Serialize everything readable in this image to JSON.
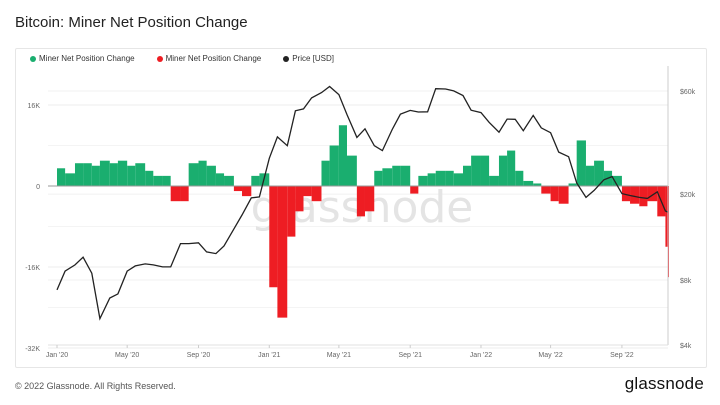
{
  "title": "Bitcoin: Miner Net Position Change",
  "footer": "© 2022 Glassnode. All Rights Reserved.",
  "logo": "glassnode",
  "watermark": "glassnode",
  "chart_data": {
    "type": "bar+line",
    "title": "Bitcoin: Miner Net Position Change",
    "legend": [
      {
        "name": "Miner Net Position Change",
        "color": "#1aae6f"
      },
      {
        "name": "Miner Net Position Change",
        "color": "#ee1d23"
      },
      {
        "name": "Price [USD]",
        "color": "#222222"
      }
    ],
    "legend_position": "top-left",
    "grid": true,
    "x_ticks": [
      "Jan '20",
      "May '20",
      "Sep '20",
      "Jan '21",
      "May '21",
      "Sep '21",
      "Jan '22",
      "May '22",
      "Sep '22"
    ],
    "x_tick_dates": [
      "2020-01-01",
      "2020-05-01",
      "2020-09-01",
      "2021-01-01",
      "2021-05-01",
      "2021-09-01",
      "2022-01-01",
      "2022-05-01",
      "2022-09-01"
    ],
    "y_left": {
      "ticks": [
        "16K",
        "0",
        "-16K",
        "-32K"
      ],
      "tick_values": [
        16000,
        0,
        -16000,
        -32000
      ],
      "range": [
        -32000,
        32000
      ]
    },
    "y_right": {
      "scale": "log",
      "ticks": [
        "$60k",
        "$20k",
        "$8k",
        "$4k"
      ],
      "tick_values": [
        60000,
        20000,
        8000,
        4000
      ]
    },
    "dates": [
      "2020-01-01",
      "2020-01-15",
      "2020-02-01",
      "2020-02-15",
      "2020-03-01",
      "2020-03-15",
      "2020-04-01",
      "2020-04-15",
      "2020-05-01",
      "2020-05-15",
      "2020-06-01",
      "2020-06-15",
      "2020-07-01",
      "2020-07-15",
      "2020-08-01",
      "2020-08-15",
      "2020-09-01",
      "2020-09-15",
      "2020-10-01",
      "2020-10-15",
      "2020-11-01",
      "2020-11-15",
      "2020-12-01",
      "2020-12-15",
      "2021-01-01",
      "2021-01-15",
      "2021-02-01",
      "2021-02-15",
      "2021-03-01",
      "2021-03-15",
      "2021-04-01",
      "2021-04-15",
      "2021-05-01",
      "2021-05-15",
      "2021-06-01",
      "2021-06-15",
      "2021-07-01",
      "2021-07-15",
      "2021-08-01",
      "2021-08-15",
      "2021-09-01",
      "2021-09-15",
      "2021-10-01",
      "2021-10-15",
      "2021-11-01",
      "2021-11-15",
      "2021-12-01",
      "2021-12-15",
      "2022-01-01",
      "2022-01-15",
      "2022-02-01",
      "2022-02-15",
      "2022-03-01",
      "2022-03-15",
      "2022-04-01",
      "2022-04-15",
      "2022-05-01",
      "2022-05-15",
      "2022-06-01",
      "2022-06-15",
      "2022-07-01",
      "2022-07-15",
      "2022-08-01",
      "2022-08-15",
      "2022-09-01",
      "2022-09-15",
      "2022-10-01",
      "2022-10-15",
      "2022-11-01",
      "2022-11-15",
      "2022-11-22"
    ],
    "series": [
      {
        "name": "Miner Net Position Change",
        "axis": "left",
        "type": "bar",
        "values": [
          3500,
          2500,
          4500,
          4500,
          4000,
          5000,
          4500,
          5000,
          4000,
          4500,
          3000,
          2000,
          2000,
          -3000,
          -3000,
          4500,
          5000,
          4000,
          2500,
          2000,
          -1000,
          -2000,
          2000,
          2500,
          -20000,
          -26000,
          -10000,
          -5000,
          -2000,
          -3000,
          5000,
          8000,
          12000,
          6000,
          -6000,
          -5000,
          3000,
          3500,
          4000,
          4000,
          -1500,
          2000,
          2500,
          3000,
          3000,
          2500,
          4000,
          6000,
          6000,
          2000,
          6000,
          7000,
          3000,
          1000,
          500,
          -1500,
          -3000,
          -3500,
          500,
          9000,
          4000,
          5000,
          3000,
          2000,
          -3000,
          -3500,
          -4000,
          -3000,
          -6000,
          -12000,
          -18000
        ]
      },
      {
        "name": "Price [USD]",
        "axis": "right",
        "type": "line",
        "values": [
          7200,
          8800,
          9400,
          10200,
          8600,
          5300,
          6600,
          6900,
          8800,
          9300,
          9500,
          9400,
          9200,
          9200,
          11800,
          11800,
          11900,
          10800,
          10600,
          11500,
          13800,
          16000,
          19200,
          19400,
          29300,
          36800,
          33500,
          48600,
          49600,
          55800,
          59000,
          63000,
          57800,
          46700,
          36600,
          40100,
          33500,
          31800,
          39800,
          46900,
          48800,
          48000,
          48100,
          61500,
          61300,
          60100,
          57200,
          48900,
          47700,
          43000,
          38700,
          44500,
          44400,
          39300,
          46300,
          40500,
          38500,
          31300,
          29800,
          22500,
          19300,
          20800,
          23300,
          24100,
          20100,
          19700,
          19300,
          19100,
          20500,
          16700,
          16500
        ]
      }
    ],
    "positive_color": "#1aae6f",
    "negative_color": "#ee1d23",
    "price_color": "#222222"
  }
}
